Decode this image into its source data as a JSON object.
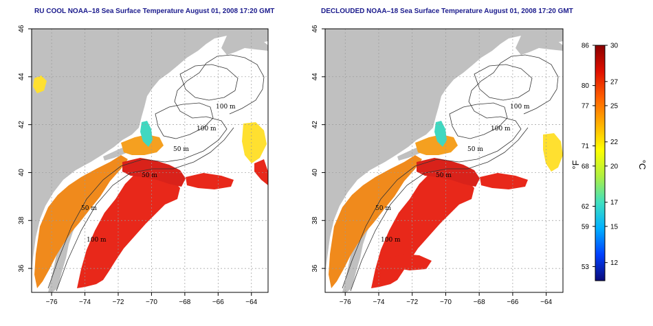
{
  "maps": [
    {
      "title": "RU COOL NOAA–18 Sea Surface Temperature August 01, 2008 17:20 GMT",
      "contour_labels": [
        "100 m",
        "100 m",
        "50 m",
        "50 m",
        "50 m",
        "100 m"
      ]
    },
    {
      "title": "DECLOUDED NOAA–18 Sea Surface Temperature August 01, 2008 17:20 GMT",
      "contour_labels": [
        "100 m",
        "100 m",
        "50 m",
        "50 m",
        "50 m",
        "100 m"
      ]
    }
  ],
  "axes": {
    "x_ticks": [
      "−76",
      "−74",
      "−72",
      "−70",
      "−68",
      "−66",
      "−64"
    ],
    "y_ticks": [
      "36",
      "38",
      "40",
      "42",
      "44",
      "46"
    ],
    "x_range": [
      -77.2,
      -63.0
    ],
    "y_range": [
      35.0,
      46.0
    ],
    "grid": "dotted"
  },
  "colorbar": {
    "fahrenheit_ticks": [
      "86",
      "80",
      "77",
      "71",
      "68",
      "62",
      "59",
      "53"
    ],
    "fahrenheit_values": [
      86,
      80,
      77,
      71,
      68,
      62,
      59,
      53
    ],
    "celsius_ticks": [
      "30",
      "27",
      "25",
      "22",
      "20",
      "17",
      "15",
      "12"
    ],
    "celsius_values": [
      30,
      27,
      25,
      22,
      20,
      17,
      15,
      12
    ],
    "range_c": [
      10.5,
      30
    ],
    "unit_f": "°F",
    "unit_c": "°C",
    "colors": [
      "#0a0a7a",
      "#0040ff",
      "#00b0ff",
      "#40e0c0",
      "#b0f040",
      "#ffff00",
      "#ffb000",
      "#ff6000",
      "#e01000",
      "#8b0000"
    ]
  },
  "colors": {
    "land": "#c0c0c0",
    "ocean_empty": "#ffffff",
    "sst_hot": "#e8281a",
    "sst_warm": "#f25a1e",
    "sst_mid": "#f08a1c",
    "sst_cool": "#ffd020",
    "title": "#1a1a8c"
  }
}
